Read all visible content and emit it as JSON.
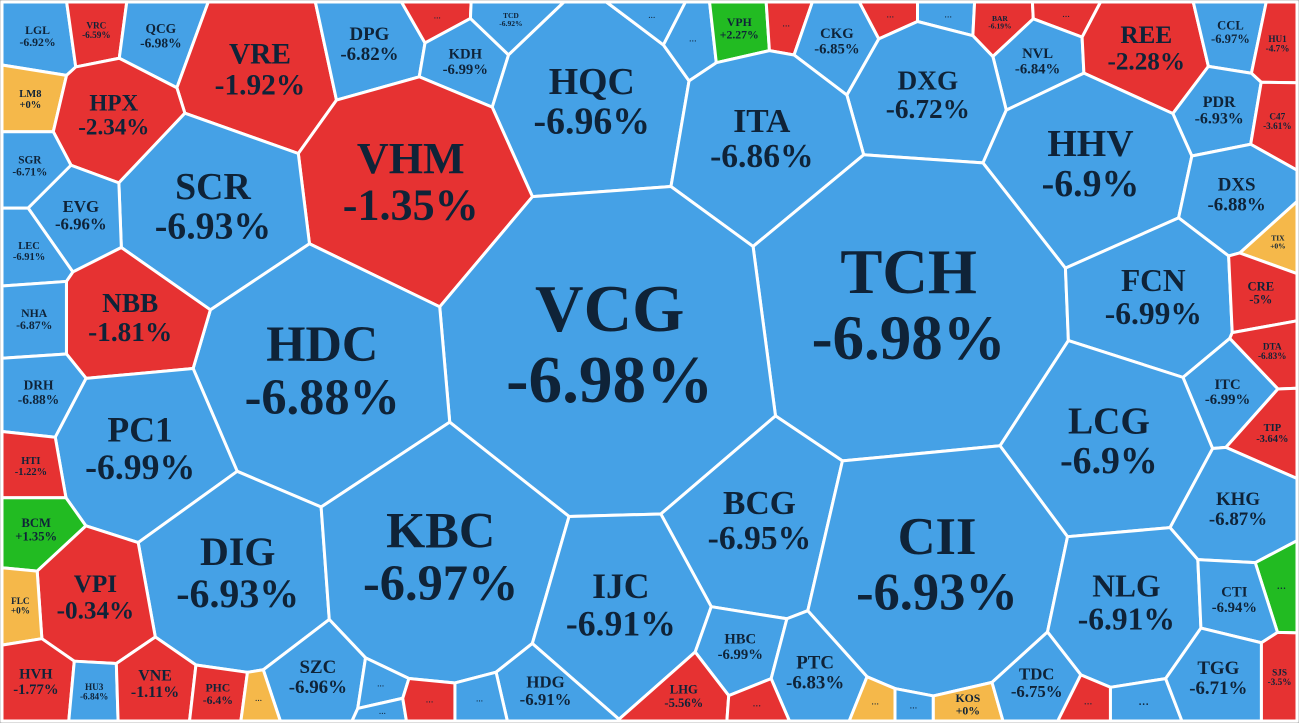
{
  "cells": [
    {
      "ticker": "LGL",
      "change": "-6.92%",
      "color": "#45a1e6"
    },
    {
      "ticker": "VRC",
      "change": "-6.59%",
      "color": "#e63232"
    },
    {
      "ticker": "QCG",
      "change": "-6.98%",
      "color": "#45a1e6"
    },
    {
      "ticker": "VRE",
      "change": "-1.92%",
      "color": "#e63232"
    },
    {
      "ticker": "DPG",
      "change": "-6.82%",
      "color": "#45a1e6"
    },
    {
      "ticker": "…",
      "color": "#e63232"
    },
    {
      "ticker": "KDH",
      "change": "-6.99%",
      "color": "#45a1e6"
    },
    {
      "ticker": "TCD",
      "change": "-6.92%",
      "color": "#45a1e6"
    },
    {
      "ticker": "HQC",
      "change": "-6.96%",
      "color": "#45a1e6"
    },
    {
      "ticker": "…",
      "color": "#45a1e6"
    },
    {
      "ticker": "…",
      "color": "#45a1e6"
    },
    {
      "ticker": "VPH",
      "change": "+2.27%",
      "color": "#22bb22"
    },
    {
      "ticker": "…",
      "color": "#e63232"
    },
    {
      "ticker": "CKG",
      "change": "-6.85%",
      "color": "#45a1e6"
    },
    {
      "ticker": "…",
      "color": "#e63232"
    },
    {
      "ticker": "…",
      "color": "#45a1e6"
    },
    {
      "ticker": "BAR",
      "change": "-6.19%",
      "color": "#e63232"
    },
    {
      "ticker": "…",
      "color": "#e63232"
    },
    {
      "ticker": "NVL",
      "change": "-6.84%",
      "color": "#45a1e6"
    },
    {
      "ticker": "DXG",
      "change": "-6.72%",
      "color": "#45a1e6"
    },
    {
      "ticker": "ITA",
      "change": "-6.86%",
      "color": "#45a1e6"
    },
    {
      "ticker": "REE",
      "change": "-2.28%",
      "color": "#e63232"
    },
    {
      "ticker": "CCL",
      "change": "-6.97%",
      "color": "#45a1e6"
    },
    {
      "ticker": "HU1",
      "change": "-4.7%",
      "color": "#e63232"
    },
    {
      "ticker": "LM8",
      "change": "+0%",
      "color": "#f5b84a"
    },
    {
      "ticker": "HPX",
      "change": "-2.34%",
      "color": "#e63232"
    },
    {
      "ticker": "VHM",
      "change": "-1.35%",
      "color": "#e63232"
    },
    {
      "ticker": "PDR",
      "change": "-6.93%",
      "color": "#45a1e6"
    },
    {
      "ticker": "C47",
      "change": "-3.61%",
      "color": "#e63232"
    },
    {
      "ticker": "SGR",
      "change": "-6.71%",
      "color": "#45a1e6"
    },
    {
      "ticker": "SCR",
      "change": "-6.93%",
      "color": "#45a1e6"
    },
    {
      "ticker": "HHV",
      "change": "-6.9%",
      "color": "#45a1e6"
    },
    {
      "ticker": "DXS",
      "change": "-6.88%",
      "color": "#45a1e6"
    },
    {
      "ticker": "EVG",
      "change": "-6.96%",
      "color": "#45a1e6"
    },
    {
      "ticker": "LEC",
      "change": "-6.91%",
      "color": "#45a1e6"
    },
    {
      "ticker": "TIX",
      "change": "+0%",
      "color": "#f5b84a"
    },
    {
      "ticker": "TCH",
      "change": "-6.98%",
      "color": "#45a1e6"
    },
    {
      "ticker": "VCG",
      "change": "-6.98%",
      "color": "#45a1e6"
    },
    {
      "ticker": "HDC",
      "change": "-6.88%",
      "color": "#45a1e6"
    },
    {
      "ticker": "NBB",
      "change": "-1.81%",
      "color": "#e63232"
    },
    {
      "ticker": "FCN",
      "change": "-6.99%",
      "color": "#45a1e6"
    },
    {
      "ticker": "CRE",
      "change": "-5%",
      "color": "#e63232"
    },
    {
      "ticker": "NHA",
      "change": "-6.87%",
      "color": "#45a1e6"
    },
    {
      "ticker": "DTA",
      "change": "-6.83%",
      "color": "#e63232"
    },
    {
      "ticker": "DRH",
      "change": "-6.88%",
      "color": "#45a1e6"
    },
    {
      "ticker": "ITC",
      "change": "-6.99%",
      "color": "#45a1e6"
    },
    {
      "ticker": "PC1",
      "change": "-6.99%",
      "color": "#45a1e6"
    },
    {
      "ticker": "LCG",
      "change": "-6.9%",
      "color": "#45a1e6"
    },
    {
      "ticker": "TIP",
      "change": "-3.64%",
      "color": "#e63232"
    },
    {
      "ticker": "HTI",
      "change": "-1.22%",
      "color": "#e63232"
    },
    {
      "ticker": "BCM",
      "change": "+1.35%",
      "color": "#22bb22"
    },
    {
      "ticker": "KHG",
      "change": "-6.87%",
      "color": "#45a1e6"
    },
    {
      "ticker": "BCG",
      "change": "-6.95%",
      "color": "#45a1e6"
    },
    {
      "ticker": "DIG",
      "change": "-6.93%",
      "color": "#45a1e6"
    },
    {
      "ticker": "KBC",
      "change": "-6.97%",
      "color": "#45a1e6"
    },
    {
      "ticker": "CII",
      "change": "-6.93%",
      "color": "#45a1e6"
    },
    {
      "ticker": "IJC",
      "change": "-6.91%",
      "color": "#45a1e6"
    },
    {
      "ticker": "VPI",
      "change": "-0.34%",
      "color": "#e63232"
    },
    {
      "ticker": "FLC",
      "change": "+0%",
      "color": "#f5b84a"
    },
    {
      "ticker": "NLG",
      "change": "-6.91%",
      "color": "#45a1e6"
    },
    {
      "ticker": "…",
      "color": "#22bb22"
    },
    {
      "ticker": "CTI",
      "change": "-6.94%",
      "color": "#45a1e6"
    },
    {
      "ticker": "HBC",
      "change": "-6.99%",
      "color": "#45a1e6"
    },
    {
      "ticker": "PTC",
      "change": "-6.83%",
      "color": "#45a1e6"
    },
    {
      "ticker": "SZC",
      "change": "-6.96%",
      "color": "#45a1e6"
    },
    {
      "ticker": "HDG",
      "change": "-6.91%",
      "color": "#45a1e6"
    },
    {
      "ticker": "HVH",
      "change": "-1.77%",
      "color": "#e63232"
    },
    {
      "ticker": "HU3",
      "change": "-6.84%",
      "color": "#45a1e6"
    },
    {
      "ticker": "VNE",
      "change": "-1.11%",
      "color": "#e63232"
    },
    {
      "ticker": "PHC",
      "change": "-6.4%",
      "color": "#e63232"
    },
    {
      "ticker": "…",
      "color": "#f5b84a"
    },
    {
      "ticker": "…",
      "color": "#45a1e6"
    },
    {
      "ticker": "…",
      "color": "#45a1e6"
    },
    {
      "ticker": "…",
      "color": "#e63232"
    },
    {
      "ticker": "…",
      "color": "#45a1e6"
    },
    {
      "ticker": "LHG",
      "change": "-5.56%",
      "color": "#e63232"
    },
    {
      "ticker": "…",
      "color": "#e63232"
    },
    {
      "ticker": "…",
      "color": "#f5b84a"
    },
    {
      "ticker": "…",
      "color": "#45a1e6"
    },
    {
      "ticker": "KOS",
      "change": "+0%",
      "color": "#f5b84a"
    },
    {
      "ticker": "TDC",
      "change": "-6.75%",
      "color": "#45a1e6"
    },
    {
      "ticker": "…",
      "color": "#e63232"
    },
    {
      "ticker": "…",
      "color": "#45a1e6"
    },
    {
      "ticker": "TGG",
      "change": "-6.71%",
      "color": "#45a1e6"
    },
    {
      "ticker": "SJS",
      "change": "-3.5%",
      "color": "#e63232"
    }
  ]
}
